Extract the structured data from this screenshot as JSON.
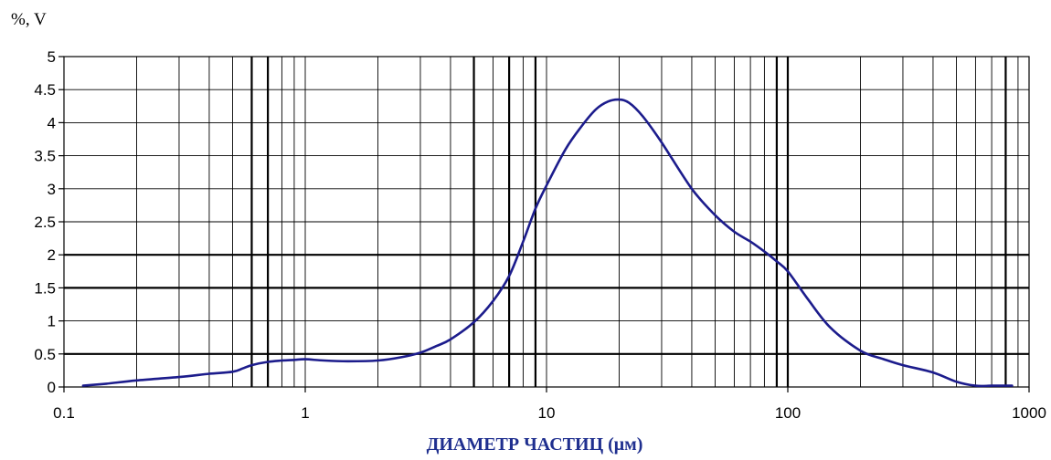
{
  "chart_data": {
    "type": "line",
    "y_unit_label": "%, V",
    "xlabel": "ДИАМЕТР ЧАСТИЦ (μм)",
    "x_scale": "log",
    "xlim": [
      0.1,
      1000
    ],
    "ylim": [
      0,
      5
    ],
    "x_tick_labels": [
      "0.1",
      "1",
      "10",
      "100",
      "1000"
    ],
    "y_tick_labels": [
      "0",
      "0.5",
      "1",
      "1.5",
      "2",
      "2.5",
      "3",
      "3.5",
      "4",
      "4.5",
      "5"
    ],
    "grid": true,
    "emphasized_gridlines_x": [
      0.6,
      0.7,
      5,
      7,
      9,
      90,
      100,
      800
    ],
    "emphasized_gridlines_y": [
      0.5,
      1.5,
      2
    ],
    "colors": {
      "curve": "#1c1c8c",
      "xlabel": "#1f2f8f",
      "grid": "#000000"
    },
    "series": [
      {
        "x": [
          0.12,
          0.15,
          0.2,
          0.3,
          0.4,
          0.5,
          0.55,
          0.6,
          0.7,
          0.8,
          0.9,
          1.0,
          1.2,
          1.5,
          2.0,
          2.5,
          3.0,
          3.5,
          4.0,
          5.0,
          6.0,
          7.0,
          8.0,
          9.0,
          10,
          12,
          14,
          16,
          18,
          20,
          22,
          25,
          30,
          40,
          50,
          60,
          70,
          80,
          90,
          100,
          120,
          150,
          200,
          250,
          300,
          400,
          500,
          600,
          700,
          800,
          850
        ],
        "values": [
          0.02,
          0.05,
          0.1,
          0.15,
          0.2,
          0.23,
          0.28,
          0.33,
          0.38,
          0.4,
          0.41,
          0.42,
          0.4,
          0.39,
          0.4,
          0.45,
          0.52,
          0.62,
          0.72,
          0.98,
          1.3,
          1.68,
          2.2,
          2.7,
          3.05,
          3.6,
          3.95,
          4.2,
          4.32,
          4.35,
          4.3,
          4.1,
          3.7,
          3.0,
          2.6,
          2.35,
          2.2,
          2.05,
          1.9,
          1.75,
          1.35,
          0.9,
          0.55,
          0.42,
          0.33,
          0.22,
          0.08,
          0.02,
          0.02,
          0.02,
          0.02
        ]
      }
    ]
  }
}
